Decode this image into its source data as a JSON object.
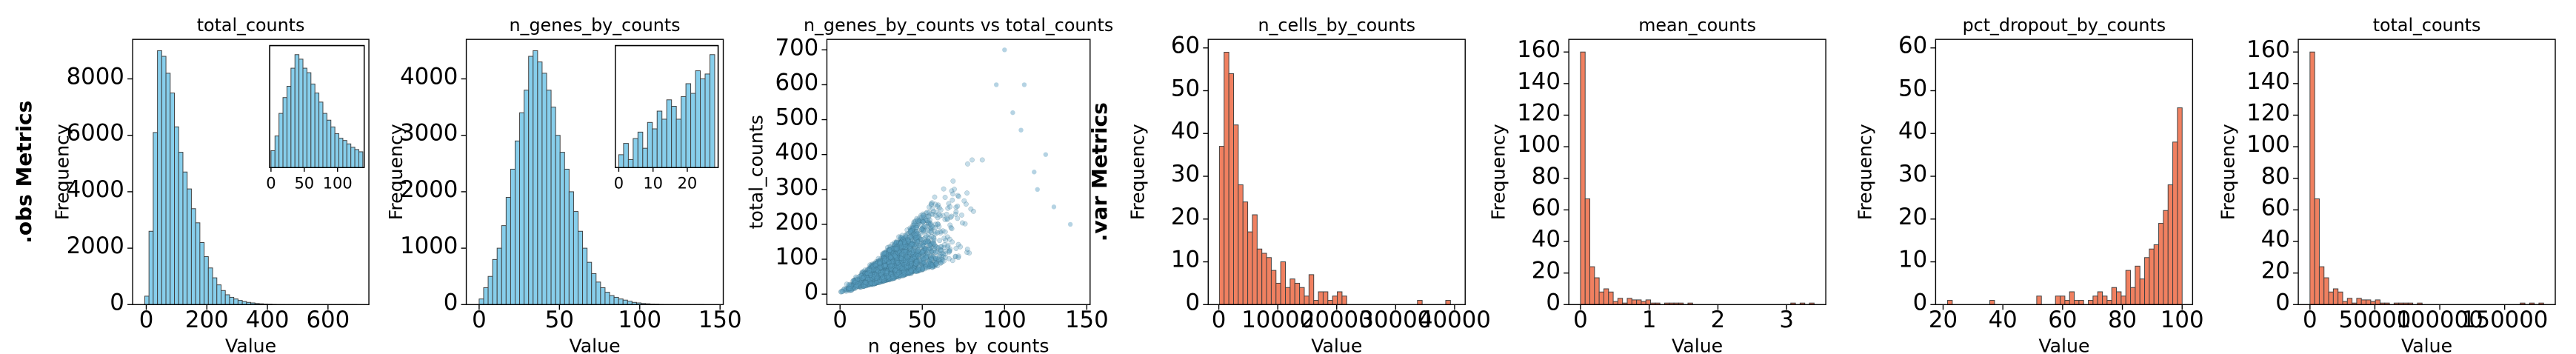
{
  "figure": {
    "row_labels": [
      ".obs Metrics",
      ".var Metrics"
    ]
  },
  "colors": {
    "obs_fill": "#87CEEB",
    "var_fill": "#F08060",
    "scatter_fill": "#5A9EC0",
    "edge": "#404040"
  },
  "chart_data": [
    {
      "type": "bar",
      "title": "total_counts",
      "xlabel": "Value",
      "ylabel": "Frequency",
      "row_label": ".obs Metrics",
      "xlim": [
        -45,
        735
      ],
      "ylim": [
        0,
        9400
      ],
      "xticks": [
        0,
        200,
        400,
        600
      ],
      "yticks": [
        0,
        2000,
        4000,
        6000,
        8000
      ],
      "bin_start": -5,
      "bin_width": 14,
      "values": [
        300,
        2600,
        6100,
        9000,
        8800,
        8200,
        7500,
        6300,
        5400,
        4700,
        4100,
        3400,
        2900,
        2200,
        1700,
        1300,
        950,
        700,
        500,
        350,
        260,
        200,
        150,
        110,
        80,
        60,
        40,
        30,
        20,
        15,
        10,
        5,
        5,
        3,
        2,
        2,
        1,
        1,
        1,
        1,
        1,
        1,
        1,
        1,
        1,
        1,
        1,
        1,
        1,
        1
      ],
      "inset": {
        "xlim": [
          -2,
          140
        ],
        "xticks": [
          0,
          50,
          100
        ],
        "bin_start": 0,
        "bin_width": 6,
        "values": [
          15,
          28,
          48,
          62,
          72,
          88,
          100,
          96,
          88,
          84,
          74,
          66,
          58,
          48,
          42,
          36,
          30,
          26,
          24,
          21,
          18,
          16,
          14
        ]
      }
    },
    {
      "type": "bar",
      "title": "n_genes_by_counts",
      "xlabel": "Value",
      "ylabel": "Frequency",
      "xlim": [
        -8,
        152
      ],
      "ylim": [
        0,
        4700
      ],
      "xticks": [
        0,
        50,
        100,
        150
      ],
      "yticks": [
        0,
        1000,
        2000,
        3000,
        4000
      ],
      "bin_start": 0,
      "bin_width": 2.8,
      "values": [
        100,
        300,
        500,
        800,
        1000,
        1400,
        1900,
        2400,
        2900,
        3400,
        3800,
        4400,
        4500,
        4300,
        4100,
        3800,
        3500,
        3000,
        2700,
        2400,
        2000,
        1650,
        1300,
        1000,
        750,
        550,
        400,
        300,
        220,
        160,
        130,
        100,
        80,
        60,
        40,
        30,
        20,
        15,
        10,
        8,
        5,
        4,
        3,
        2,
        2,
        1,
        1,
        1,
        1,
        1
      ],
      "inset": {
        "xlim": [
          -1,
          29
        ],
        "xticks": [
          0,
          10,
          20
        ],
        "bin_start": 0,
        "bin_width": 1.4,
        "values": [
          8,
          15,
          5,
          18,
          22,
          12,
          28,
          24,
          35,
          30,
          42,
          38,
          30,
          44,
          52,
          46,
          60,
          55,
          58,
          70
        ]
      }
    },
    {
      "type": "scatter",
      "title": "n_genes_by_counts vs total_counts",
      "xlabel": "n_genes_by_counts",
      "ylabel": "total_counts",
      "xlim": [
        -8,
        152
      ],
      "ylim": [
        -30,
        730
      ],
      "xticks": [
        0,
        50,
        100,
        150
      ],
      "yticks": [
        0,
        100,
        200,
        300,
        400,
        500,
        600,
        700
      ],
      "slope_low": 1.35,
      "slope_high": 3.6,
      "x_center": 32,
      "x_spread": 16
    },
    {
      "type": "bar",
      "title": "n_cells_by_counts",
      "xlabel": "Value",
      "ylabel": "Frequency",
      "row_label": ".var Metrics",
      "xlim": [
        -1800,
        41800
      ],
      "ylim": [
        0,
        62
      ],
      "xticks": [
        0,
        10000,
        20000,
        30000,
        40000
      ],
      "yticks": [
        0,
        10,
        20,
        30,
        40,
        50,
        60
      ],
      "bin_start": 100,
      "bin_width": 800,
      "values": [
        37,
        59,
        54,
        42,
        28,
        24,
        17,
        21,
        13,
        12,
        11,
        8,
        5,
        10,
        4,
        6,
        5,
        4,
        2,
        7,
        1,
        3,
        3,
        1,
        2,
        3,
        2,
        0,
        0,
        0,
        0,
        0,
        0,
        0,
        0,
        0,
        0,
        0,
        0,
        0,
        0,
        0,
        1,
        0,
        0,
        0,
        0,
        0,
        1
      ]
    },
    {
      "type": "bar",
      "title": "mean_counts",
      "xlabel": "Value",
      "ylabel": "Frequency",
      "xlim": [
        -0.17,
        3.57
      ],
      "ylim": [
        0,
        168
      ],
      "xticks": [
        0,
        1,
        2,
        3
      ],
      "yticks": [
        0,
        20,
        40,
        60,
        80,
        100,
        120,
        140,
        160
      ],
      "bin_start": 0,
      "bin_width": 0.068,
      "values": [
        160,
        67,
        24,
        17,
        8,
        10,
        8,
        2,
        4,
        1,
        4,
        3,
        3,
        2,
        3,
        1,
        1,
        0,
        1,
        1,
        1,
        1,
        0,
        1,
        0,
        0,
        0,
        0,
        0,
        0,
        0,
        0,
        0,
        0,
        0,
        0,
        0,
        0,
        0,
        0,
        0,
        0,
        0,
        0,
        0,
        1,
        0,
        1,
        0,
        1
      ]
    },
    {
      "type": "bar",
      "title": "pct_dropout_by_counts",
      "xlabel": "Value",
      "ylabel": "Frequency",
      "xlim": [
        17.5,
        103.5
      ],
      "ylim": [
        0,
        62
      ],
      "xticks": [
        20,
        40,
        60,
        80,
        100
      ],
      "yticks": [
        0,
        10,
        20,
        30,
        40,
        50,
        60
      ],
      "bin_start": 21.5,
      "bin_width": 1.57,
      "values": [
        1,
        0,
        0,
        0,
        0,
        0,
        0,
        0,
        0,
        1,
        0,
        0,
        0,
        0,
        0,
        0,
        0,
        0,
        0,
        2,
        0,
        0,
        0,
        2,
        2,
        1,
        3,
        1,
        1,
        0,
        1,
        2,
        3,
        2,
        1,
        4,
        3,
        2,
        8,
        4,
        9,
        6,
        11,
        13,
        14,
        19,
        22,
        28,
        38,
        46
      ]
    },
    {
      "type": "bar",
      "title": "total_counts",
      "xlabel": "Value",
      "ylabel": "Frequency",
      "xlim": [
        -9000,
        189000
      ],
      "ylim": [
        0,
        168
      ],
      "xticks": [
        0,
        50000,
        100000,
        150000
      ],
      "yticks": [
        0,
        20,
        40,
        60,
        80,
        100,
        120,
        140,
        160
      ],
      "bin_start": 0,
      "bin_width": 3600,
      "values": [
        160,
        67,
        24,
        17,
        8,
        10,
        8,
        2,
        4,
        1,
        4,
        3,
        3,
        2,
        3,
        1,
        1,
        0,
        1,
        1,
        1,
        1,
        0,
        1,
        0,
        0,
        0,
        0,
        0,
        0,
        0,
        0,
        0,
        0,
        0,
        0,
        0,
        0,
        0,
        0,
        0,
        0,
        0,
        0,
        0,
        1,
        0,
        1,
        0,
        1
      ]
    }
  ]
}
